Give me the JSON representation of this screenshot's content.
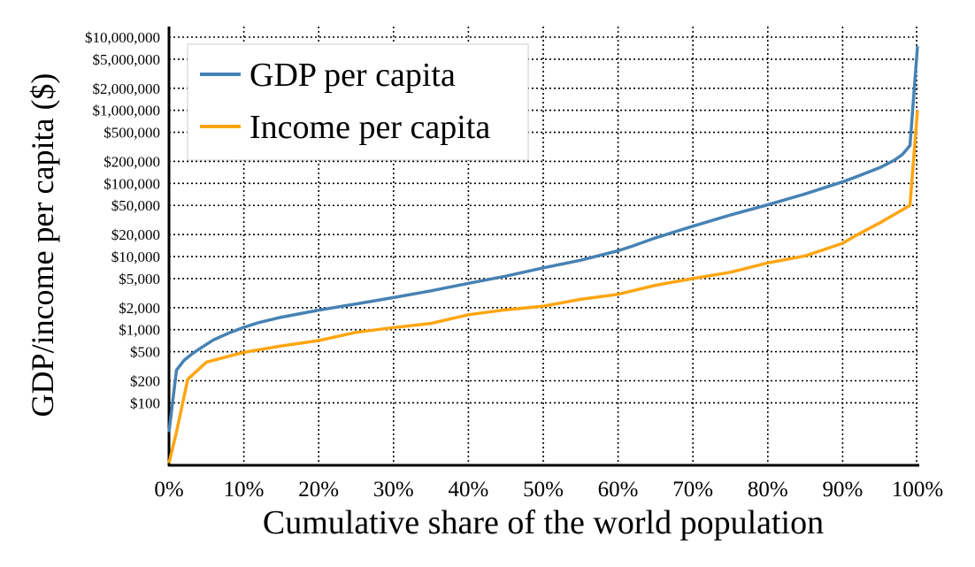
{
  "chart_data": {
    "type": "line",
    "title": "",
    "xlabel": "Cumulative share of the world population",
    "ylabel": "GDP/income per capita ($)",
    "x_scale": "linear",
    "y_scale": "log",
    "xlim": [
      0,
      100
    ],
    "ylim": [
      14,
      10000000
    ],
    "grid": true,
    "legend_position": "top-left",
    "x_ticks": [
      {
        "value": 0,
        "label": "0%"
      },
      {
        "value": 10,
        "label": "10%"
      },
      {
        "value": 20,
        "label": "20%"
      },
      {
        "value": 30,
        "label": "30%"
      },
      {
        "value": 40,
        "label": "40%"
      },
      {
        "value": 50,
        "label": "50%"
      },
      {
        "value": 60,
        "label": "60%"
      },
      {
        "value": 70,
        "label": "70%"
      },
      {
        "value": 80,
        "label": "80%"
      },
      {
        "value": 90,
        "label": "90%"
      },
      {
        "value": 100,
        "label": "100%"
      }
    ],
    "y_ticks": [
      {
        "value": 100,
        "label": "$100"
      },
      {
        "value": 200,
        "label": "$200"
      },
      {
        "value": 500,
        "label": "$500"
      },
      {
        "value": 1000,
        "label": "$1,000"
      },
      {
        "value": 2000,
        "label": "$2,000"
      },
      {
        "value": 5000,
        "label": "$5,000"
      },
      {
        "value": 10000,
        "label": "$10,000"
      },
      {
        "value": 20000,
        "label": "$20,000"
      },
      {
        "value": 50000,
        "label": "$50,000"
      },
      {
        "value": 100000,
        "label": "$100,000"
      },
      {
        "value": 200000,
        "label": "$200,000"
      },
      {
        "value": 500000,
        "label": "$500,000"
      },
      {
        "value": 1000000,
        "label": "$1,000,000"
      },
      {
        "value": 2000000,
        "label": "$2,000,000"
      },
      {
        "value": 5000000,
        "label": "$5,000,000"
      },
      {
        "value": 10000000,
        "label": "$10,000,000"
      }
    ],
    "series": [
      {
        "name": "GDP per capita",
        "color": "#4682b4",
        "x": [
          0,
          1,
          2,
          3,
          4,
          5,
          6,
          8,
          10,
          12,
          15,
          20,
          25,
          30,
          35,
          40,
          45,
          50,
          55,
          60,
          62,
          65,
          70,
          75,
          80,
          85,
          90,
          92,
          95,
          97,
          98,
          99,
          100
        ],
        "y": [
          40,
          280,
          380,
          460,
          540,
          630,
          730,
          900,
          1080,
          1250,
          1480,
          1850,
          2250,
          2750,
          3400,
          4300,
          5400,
          7000,
          8900,
          12000,
          14000,
          18000,
          26000,
          37000,
          51000,
          72000,
          105000,
          125000,
          165000,
          210000,
          250000,
          330000,
          7500000
        ]
      },
      {
        "name": "Income per capita",
        "color": "#ffa510",
        "x": [
          0,
          1,
          2.5,
          5,
          10,
          15,
          20,
          25,
          30,
          35,
          40,
          45,
          50,
          55,
          60,
          65,
          70,
          75,
          80,
          85,
          90,
          92,
          95,
          99,
          100
        ],
        "y": [
          15,
          40,
          210,
          360,
          490,
          600,
          710,
          920,
          1070,
          1220,
          1600,
          1870,
          2100,
          2600,
          3050,
          4050,
          5000,
          6100,
          8200,
          10200,
          15200,
          20000,
          29000,
          50000,
          1000000
        ]
      }
    ]
  }
}
